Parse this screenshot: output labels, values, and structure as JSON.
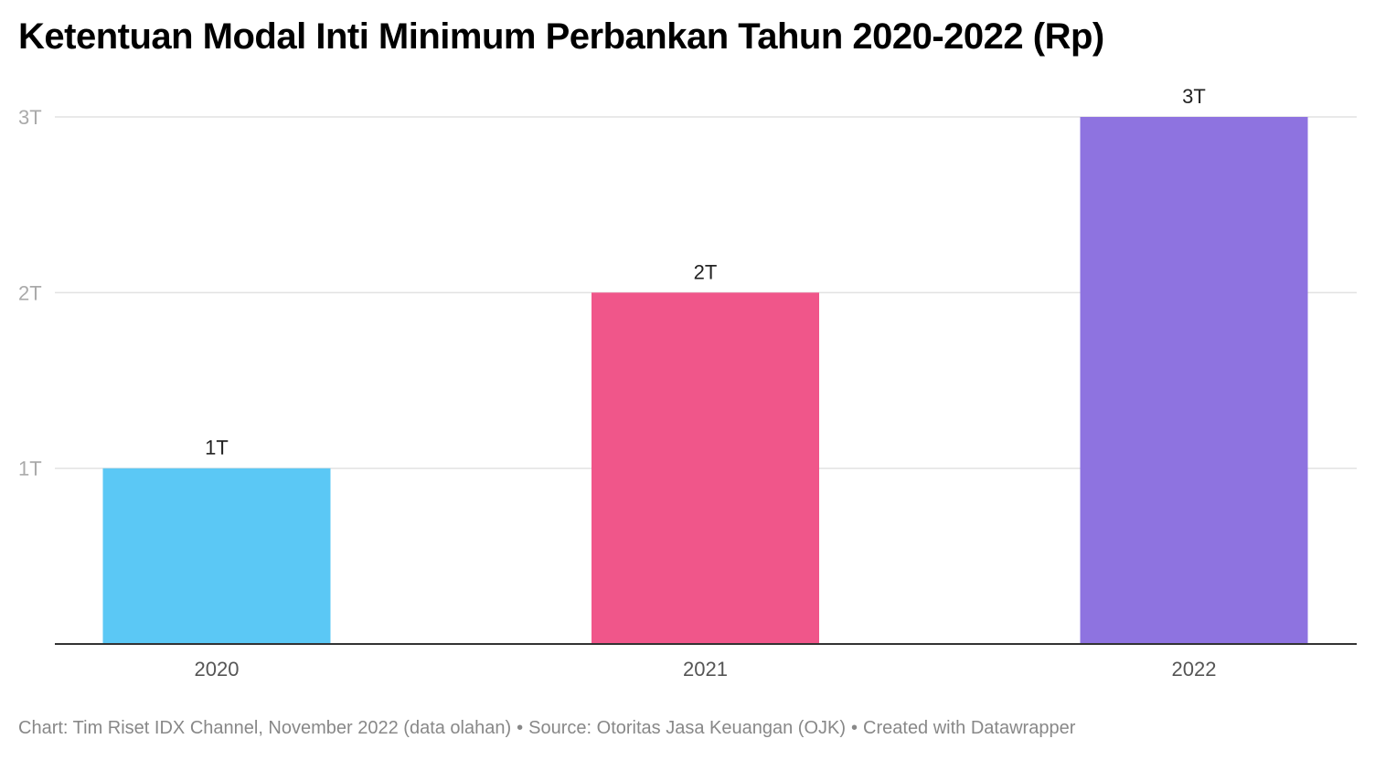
{
  "title": "Ketentuan Modal Inti Minimum Perbankan Tahun 2020-2022 (Rp)",
  "footer": {
    "chart_credit": "Chart: Tim Riset IDX Channel, November 2022 (data olahan)",
    "source": "Source: Otoritas Jasa Keuangan (OJK)",
    "created_with": "Created with Datawrapper",
    "separator": "•"
  },
  "chart_data": {
    "type": "bar",
    "title": "Ketentuan Modal Inti Minimum Perbankan Tahun 2020-2022 (Rp)",
    "categories": [
      "2020",
      "2021",
      "2022"
    ],
    "values": [
      1,
      2,
      3
    ],
    "value_labels": [
      "1T",
      "2T",
      "3T"
    ],
    "bar_colors": [
      "#5bc8f5",
      "#f0568a",
      "#8e73e0"
    ],
    "y_ticks": [
      {
        "value": 1,
        "label": "1T"
      },
      {
        "value": 2,
        "label": "2T"
      },
      {
        "value": 3,
        "label": "3T"
      }
    ],
    "ylim": [
      0,
      3
    ],
    "unit": "triliun rupiah",
    "grid": true,
    "legend": "none",
    "xlabel": "",
    "ylabel": ""
  }
}
